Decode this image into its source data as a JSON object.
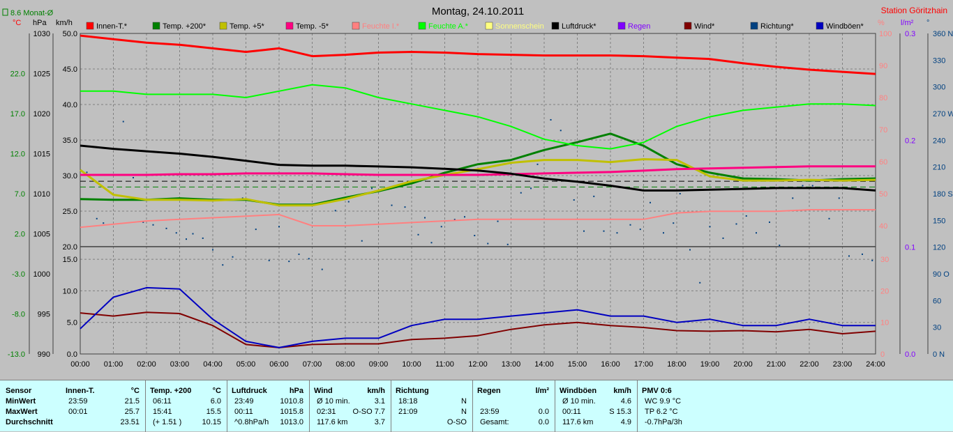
{
  "title": "Montag, 24.10.2011",
  "station": "Station Göritzhain",
  "monthly_avg_label": "8.6 Monat-Ø",
  "axis_units": {
    "temp": "°C",
    "pressure": "hPa",
    "wind": "km/h",
    "humidity": "%",
    "rain": "l/m²",
    "direction": "°"
  },
  "legend": [
    {
      "label": "Innen-T.*",
      "color": "#ff0000",
      "text_color": "#000000"
    },
    {
      "label": "Temp. +200*",
      "color": "#008000",
      "text_color": "#000000"
    },
    {
      "label": "Temp. +5*",
      "color": "#c0c000",
      "text_color": "#000000"
    },
    {
      "label": "Temp. -5*",
      "color": "#ff0080",
      "text_color": "#000000"
    },
    {
      "label": "Feuchte I.*",
      "color": "#ff8080",
      "text_color": "#ff8080"
    },
    {
      "label": "Feuchte A.*",
      "color": "#00ff00",
      "text_color": "#00ff00"
    },
    {
      "label": "Sonnenschein",
      "color": "#ffff80",
      "text_color": "#ffff80"
    },
    {
      "label": "Luftdruck*",
      "color": "#000000",
      "text_color": "#000000"
    },
    {
      "label": "Regen",
      "color": "#8000ff",
      "text_color": "#8000ff"
    },
    {
      "label": "Wind*",
      "color": "#800000",
      "text_color": "#000000"
    },
    {
      "label": "Richtung*",
      "color": "#004080",
      "text_color": "#000000"
    },
    {
      "label": "Windböen*",
      "color": "#0000c0",
      "text_color": "#000000"
    }
  ],
  "axes": {
    "temp_ticks": [
      "22.0",
      "17.0",
      "12.0",
      "7.0",
      "2.0",
      "-3.0",
      "-8.0",
      "-13.0"
    ],
    "pressure_ticks": [
      "1030",
      "1025",
      "1020",
      "1015",
      "1010",
      "1005",
      "1000",
      "995",
      "990"
    ],
    "upper_ticks": [
      "50.0",
      "45.0",
      "40.0",
      "35.0",
      "30.0",
      "25.0",
      "20.0"
    ],
    "wind_ticks": [
      "15.0",
      "10.0",
      "5.0",
      "0.0"
    ],
    "humidity_upper": [
      "100",
      "90",
      "80",
      "70",
      "60",
      "50",
      "40"
    ],
    "humidity_lower": [
      "30",
      "20",
      "10",
      "0"
    ],
    "rain_ticks": [
      "0.3",
      "0.2",
      "0.1",
      "0.0"
    ],
    "direction_ticks": [
      "360 N",
      "330",
      "300",
      "270 W",
      "240",
      "210",
      "180 S",
      "150",
      "120",
      "90 O",
      "60",
      "30",
      "0 N"
    ],
    "x_ticks": [
      "00:00",
      "01:00",
      "02:00",
      "03:00",
      "04:00",
      "05:00",
      "06:00",
      "07:00",
      "08:00",
      "09:00",
      "10:00",
      "11:00",
      "12:00",
      "13:00",
      "14:00",
      "15:00",
      "16:00",
      "17:00",
      "18:00",
      "19:00",
      "20:00",
      "21:00",
      "22:00",
      "23:00",
      "24:00"
    ]
  },
  "chart_data": {
    "type": "line",
    "title": "Montag, 24.10.2011",
    "x_hours": [
      0,
      1,
      2,
      3,
      4,
      5,
      6,
      7,
      8,
      9,
      10,
      11,
      12,
      13,
      14,
      15,
      16,
      17,
      18,
      19,
      20,
      21,
      22,
      23,
      24
    ],
    "series": [
      {
        "name": "Innen-T.*",
        "axis": "upper",
        "color": "#ff0000",
        "values": [
          49.7,
          49.2,
          48.7,
          48.4,
          47.9,
          47.4,
          47.9,
          46.8,
          47.0,
          47.3,
          47.4,
          47.3,
          47.1,
          47.0,
          46.9,
          46.9,
          46.9,
          46.8,
          46.6,
          46.4,
          45.8,
          45.3,
          44.9,
          44.6,
          44.3
        ]
      },
      {
        "name": "Temp. +200*",
        "axis": "upper",
        "color": "#008000",
        "values": [
          26.7,
          26.6,
          26.6,
          26.8,
          26.6,
          26.6,
          25.9,
          25.9,
          26.9,
          27.8,
          28.9,
          30.4,
          31.6,
          32.2,
          33.6,
          34.7,
          35.9,
          34.2,
          31.6,
          30.4,
          29.6,
          29.5,
          29.3,
          29.5,
          29.6
        ]
      },
      {
        "name": "Temp. +5*",
        "axis": "upper",
        "color": "#c0c000",
        "values": [
          30.8,
          27.3,
          26.6,
          26.6,
          26.5,
          26.7,
          25.8,
          25.8,
          26.7,
          27.9,
          29.2,
          30.1,
          30.9,
          31.8,
          32.2,
          32.2,
          31.9,
          32.3,
          32.2,
          29.9,
          29.3,
          29.3,
          29.4,
          29.3,
          29.4
        ]
      },
      {
        "name": "Temp. -5*",
        "axis": "upper",
        "color": "#ff0080",
        "values": [
          30.1,
          30.1,
          30.1,
          30.2,
          30.2,
          30.3,
          30.3,
          30.3,
          30.2,
          30.1,
          30.1,
          30.1,
          30.1,
          30.2,
          30.3,
          30.4,
          30.5,
          30.7,
          30.9,
          31.0,
          31.1,
          31.2,
          31.3,
          31.3,
          31.3
        ]
      },
      {
        "name": "Feuchte I.*",
        "axis": "humidity",
        "color": "#ff8080",
        "values": [
          39.5,
          40.5,
          41.5,
          42.0,
          42.5,
          43.0,
          43.5,
          40.0,
          40.0,
          40.5,
          41.0,
          41.5,
          42.0,
          42.0,
          42.0,
          42.0,
          42.0,
          42.0,
          44.0,
          44.5,
          44.5,
          44.5,
          45.0,
          45.0,
          45.0
        ]
      },
      {
        "name": "Feuchte A.*",
        "axis": "humidity",
        "color": "#00ff00",
        "values": [
          82.0,
          82.0,
          81.0,
          81.0,
          81.0,
          80.0,
          82.0,
          84.0,
          83.0,
          80.0,
          78.0,
          76.0,
          74.0,
          71.0,
          67.0,
          65.0,
          64.0,
          66.0,
          71.0,
          74.0,
          76.0,
          77.0,
          78.0,
          78.0,
          77.5
        ]
      },
      {
        "name": "Luftdruck*",
        "axis": "pressure",
        "color": "#000000",
        "values": [
          1016.0,
          1015.6,
          1015.3,
          1015.0,
          1014.6,
          1014.1,
          1013.6,
          1013.5,
          1013.5,
          1013.4,
          1013.3,
          1013.1,
          1012.9,
          1012.5,
          1011.9,
          1011.5,
          1011.0,
          1010.4,
          1010.4,
          1010.5,
          1010.6,
          1010.7,
          1010.7,
          1010.7,
          1010.4
        ]
      },
      {
        "name": "Wind*",
        "axis": "wind",
        "color": "#800000",
        "values": [
          6.5,
          6.0,
          6.6,
          6.4,
          4.5,
          1.5,
          1.0,
          1.5,
          1.6,
          1.6,
          2.3,
          2.5,
          2.9,
          3.9,
          4.6,
          5.0,
          4.5,
          4.2,
          3.7,
          3.6,
          3.7,
          3.5,
          3.9,
          3.2,
          3.6
        ]
      },
      {
        "name": "Windböen*",
        "axis": "wind",
        "color": "#0000c0",
        "values": [
          4.0,
          9.0,
          10.5,
          10.3,
          5.5,
          2.0,
          1.0,
          2.0,
          2.5,
          2.5,
          4.5,
          5.5,
          5.5,
          6.0,
          6.5,
          7.0,
          6.0,
          6.0,
          5.0,
          5.5,
          4.5,
          4.5,
          5.5,
          4.5,
          4.5
        ]
      }
    ],
    "direction_points": [
      [
        0.2,
        204
      ],
      [
        0.5,
        152
      ],
      [
        0.7,
        147
      ],
      [
        1.3,
        261
      ],
      [
        1.6,
        198
      ],
      [
        1.9,
        148
      ],
      [
        2.2,
        145
      ],
      [
        2.6,
        141
      ],
      [
        2.9,
        136
      ],
      [
        3.2,
        129
      ],
      [
        3.4,
        135
      ],
      [
        3.7,
        130
      ],
      [
        4.0,
        117
      ],
      [
        4.3,
        100
      ],
      [
        4.6,
        109
      ],
      [
        4.9,
        175
      ],
      [
        5.3,
        140
      ],
      [
        5.7,
        105
      ],
      [
        6.0,
        143
      ],
      [
        6.3,
        104
      ],
      [
        6.6,
        112
      ],
      [
        6.9,
        107
      ],
      [
        7.3,
        95
      ],
      [
        7.7,
        161
      ],
      [
        8.1,
        171
      ],
      [
        8.5,
        127
      ],
      [
        8.8,
        186
      ],
      [
        9.1,
        185
      ],
      [
        9.4,
        167
      ],
      [
        9.8,
        165
      ],
      [
        10.2,
        134
      ],
      [
        10.4,
        153
      ],
      [
        10.6,
        125
      ],
      [
        10.9,
        143
      ],
      [
        11.3,
        151
      ],
      [
        11.6,
        154
      ],
      [
        11.9,
        133
      ],
      [
        12.3,
        124
      ],
      [
        12.6,
        149
      ],
      [
        12.9,
        123
      ],
      [
        13.3,
        181
      ],
      [
        13.6,
        186
      ],
      [
        13.8,
        213
      ],
      [
        14.2,
        263
      ],
      [
        14.5,
        251
      ],
      [
        14.9,
        173
      ],
      [
        15.2,
        138
      ],
      [
        15.5,
        177
      ],
      [
        15.8,
        138
      ],
      [
        16.2,
        136
      ],
      [
        16.6,
        145
      ],
      [
        16.9,
        140
      ],
      [
        17.2,
        170
      ],
      [
        17.6,
        136
      ],
      [
        17.9,
        147
      ],
      [
        18.1,
        180
      ],
      [
        18.4,
        117
      ],
      [
        18.7,
        80
      ],
      [
        19.0,
        143
      ],
      [
        19.4,
        130
      ],
      [
        19.8,
        146
      ],
      [
        20.1,
        155
      ],
      [
        20.4,
        136
      ],
      [
        20.8,
        148
      ],
      [
        21.1,
        122
      ],
      [
        21.5,
        175
      ],
      [
        21.8,
        189
      ],
      [
        22.1,
        189
      ],
      [
        22.6,
        152
      ],
      [
        22.9,
        175
      ],
      [
        23.2,
        110
      ],
      [
        23.6,
        112
      ],
      [
        23.9,
        105
      ]
    ],
    "reference_lines": [
      {
        "axis": "upper",
        "value": 29.2,
        "color": "#000000"
      },
      {
        "axis": "upper",
        "value": 28.4,
        "color": "#008000"
      }
    ]
  },
  "stats": {
    "row_labels": [
      "Sensor",
      "MinWert",
      "MaxWert",
      "Durchschnitt"
    ],
    "columns": [
      {
        "name": "Innen-T.",
        "unit": "°C",
        "rows": [
          [
            "23:59",
            "21.5"
          ],
          [
            "00:01",
            "25.7"
          ],
          [
            "",
            "23.51"
          ]
        ]
      },
      {
        "name": "Temp. +200",
        "unit": "°C",
        "rows": [
          [
            "06:11",
            "6.0"
          ],
          [
            "15:41",
            "15.5"
          ],
          [
            "(+ 1.51 )",
            "10.15"
          ]
        ]
      },
      {
        "name": "Luftdruck",
        "unit": "hPa",
        "rows": [
          [
            "23:49",
            "1010.8"
          ],
          [
            "00:11",
            "1015.8"
          ],
          [
            "^0.8hPa/h",
            "1013.0"
          ]
        ]
      },
      {
        "name": "Wind",
        "unit": "km/h",
        "rows": [
          [
            "Ø 10 min.",
            "3.1"
          ],
          [
            "02:31",
            "O-SO 7.7"
          ],
          [
            "117.6 km",
            "3.7"
          ]
        ]
      },
      {
        "name": "Richtung",
        "unit": "",
        "rows": [
          [
            "18:18",
            "N"
          ],
          [
            "21:09",
            "N"
          ],
          [
            "",
            "O-SO"
          ]
        ]
      },
      {
        "name": "Regen",
        "unit": "l/m²",
        "rows": [
          [
            "",
            ""
          ],
          [
            "23:59",
            "0.0"
          ],
          [
            "Gesamt:",
            "0.0"
          ]
        ]
      },
      {
        "name": "Windböen",
        "unit": "km/h",
        "rows": [
          [
            "Ø 10 min.",
            "4.6"
          ],
          [
            "00:11",
            "S 15.3"
          ],
          [
            "117.6 km",
            "4.9"
          ]
        ]
      },
      {
        "name": "PMV 0:6",
        "unit": "",
        "rows": [
          [
            "WC 9.9 °C",
            ""
          ],
          [
            "TP 6.2 °C",
            ""
          ],
          [
            "-0.7hPa/3h",
            ""
          ]
        ]
      }
    ]
  }
}
